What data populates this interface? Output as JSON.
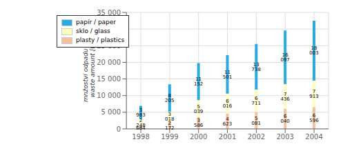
{
  "chart_data": {
    "type": "bar",
    "stacked": true,
    "categories": [
      "1998",
      "1999",
      "2000",
      "2001",
      "2002",
      "2003",
      "2004"
    ],
    "series": [
      {
        "name": "papír / paper",
        "color": "#29ABE2",
        "values": [
          3983,
          8205,
          11152,
          11501,
          13738,
          16097,
          18003
        ],
        "value_labels": [
          "3 983",
          "8 205",
          "11 152",
          "11 501",
          "13 738",
          "16 097",
          "18 003"
        ]
      },
      {
        "name": "sklo / glass",
        "color": "#FFFFBB",
        "values": [
          2248,
          3018,
          5039,
          6016,
          6711,
          7436,
          7913
        ],
        "value_labels": [
          "2 248",
          "3 018",
          "5 039",
          "6 016",
          "6 711",
          "7 436",
          "7 913"
        ]
      },
      {
        "name": "plasty / plastics",
        "color": "#F4C0A0",
        "values": [
          684,
          2172,
          3586,
          4623,
          5081,
          6040,
          6596
        ],
        "value_labels": [
          "684",
          "2 172",
          "3 586",
          "4 623",
          "5 081",
          "6 040",
          "6 596"
        ]
      }
    ],
    "y_label": "mnžoství odpadu [t]\nwaste amount [t]",
    "ylim": [
      0,
      35000
    ],
    "yticks": [
      0,
      {
        "value": 5000,
        "label": "5 000"
      },
      {
        "value": 10000,
        "label": "10 000"
      },
      {
        "value": 15000,
        "label": "15 000"
      },
      {
        "value": 20000,
        "label": "20 000"
      },
      {
        "value": 25000,
        "label": "25 000"
      },
      {
        "value": 30000,
        "label": "30 000"
      },
      {
        "value": 35000,
        "label": "35 000"
      }
    ],
    "grid": true,
    "legend": "upper left",
    "data_labels": true
  }
}
